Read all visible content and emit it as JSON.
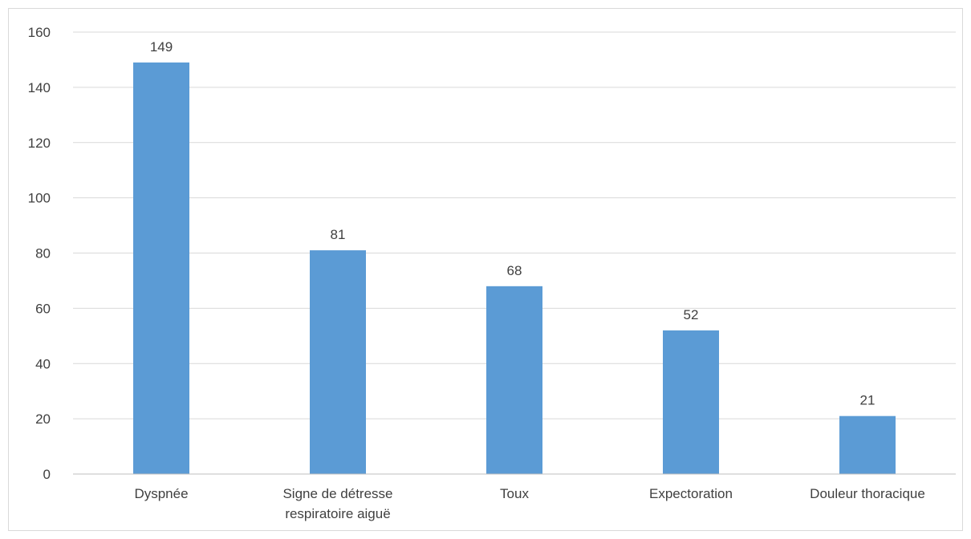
{
  "chart_data": {
    "type": "bar",
    "categories": [
      [
        "Dyspnée"
      ],
      [
        "Signe de détresse",
        "respiratoire aiguë"
      ],
      [
        "Toux"
      ],
      [
        "Expectoration"
      ],
      [
        "Douleur thoracique"
      ]
    ],
    "values": [
      149,
      81,
      68,
      52,
      21
    ],
    "data_labels": [
      "149",
      "81",
      "68",
      "52",
      "21"
    ],
    "yticks": [
      0,
      20,
      40,
      60,
      80,
      100,
      120,
      140,
      160
    ],
    "ylim": [
      0,
      160
    ],
    "grid": true,
    "legend": "none",
    "bar_color": "#5b9bd5"
  }
}
